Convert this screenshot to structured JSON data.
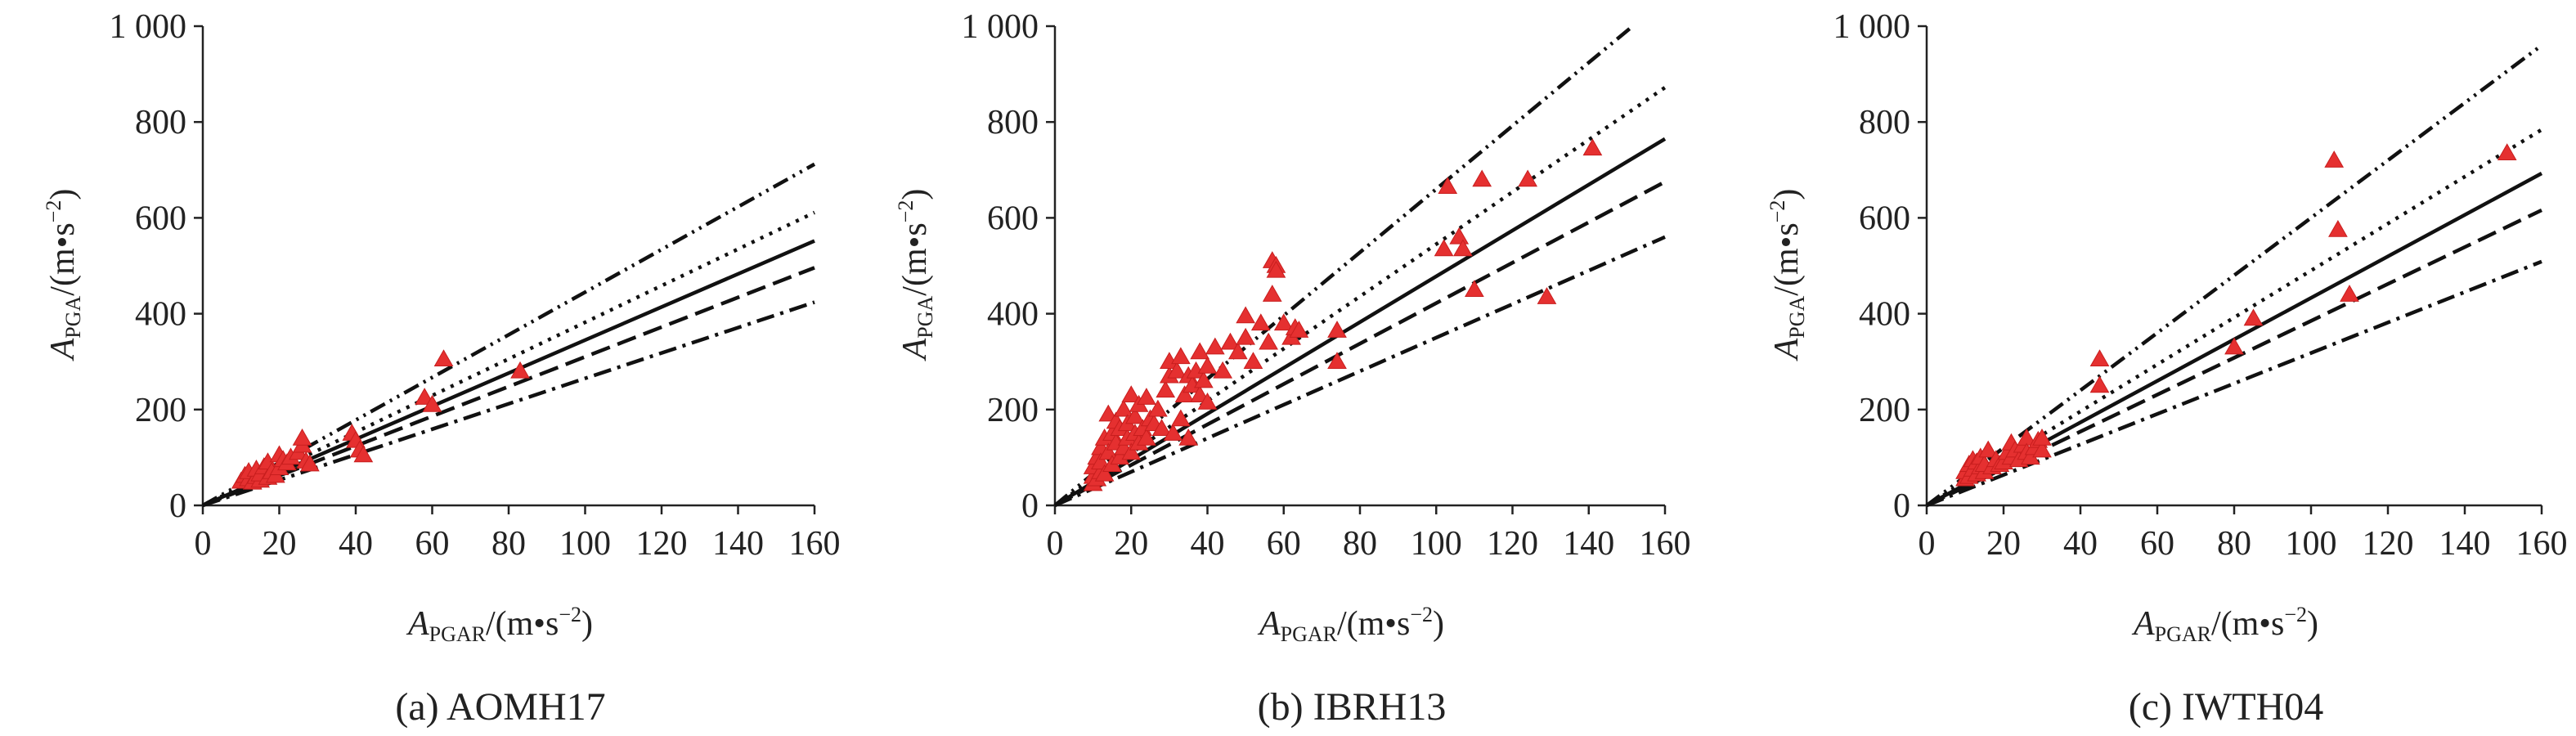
{
  "chart_data": [
    {
      "type": "scatter",
      "caption": "(a) AOMH17",
      "xlabel_main": "A",
      "xlabel_sub": "PGAR",
      "xlabel_unit": "/(m•s",
      "xlabel_exp": "−2",
      "xlabel_close": ")",
      "ylabel_main": "A",
      "ylabel_sub": "PGA",
      "ylabel_unit": "/(m•s",
      "ylabel_exp": "−2",
      "ylabel_close": ")",
      "xlim": [
        0,
        160
      ],
      "ylim": [
        0,
        1000
      ],
      "xticks": [
        0,
        20,
        40,
        60,
        80,
        100,
        120,
        140,
        160
      ],
      "yticks": [
        0,
        200,
        400,
        600,
        800,
        1000
      ],
      "ytick_labels": [
        "0",
        "200",
        "400",
        "600",
        "800",
        "1 000"
      ],
      "lines": [
        {
          "style": "dash-dot-dot",
          "slope": 4.45,
          "x_end": 160
        },
        {
          "style": "dotted",
          "slope": 3.82,
          "x_end": 160
        },
        {
          "style": "solid",
          "slope": 3.45,
          "x_end": 160
        },
        {
          "style": "dashed",
          "slope": 3.1,
          "x_end": 160
        },
        {
          "style": "dash-dot",
          "slope": 2.65,
          "x_end": 160
        }
      ],
      "points": [
        [
          10,
          50
        ],
        [
          11,
          62
        ],
        [
          12,
          55
        ],
        [
          12,
          70
        ],
        [
          13,
          48
        ],
        [
          14,
          60
        ],
        [
          14,
          75
        ],
        [
          15,
          52
        ],
        [
          15,
          65
        ],
        [
          16,
          80
        ],
        [
          17,
          58
        ],
        [
          17,
          90
        ],
        [
          18,
          70
        ],
        [
          19,
          62
        ],
        [
          20,
          78
        ],
        [
          20,
          105
        ],
        [
          21,
          95
        ],
        [
          22,
          88
        ],
        [
          23,
          100
        ],
        [
          25,
          110
        ],
        [
          26,
          125
        ],
        [
          26,
          140
        ],
        [
          27,
          92
        ],
        [
          28,
          86
        ],
        [
          39,
          150
        ],
        [
          40,
          135
        ],
        [
          41,
          115
        ],
        [
          42,
          105
        ],
        [
          58,
          225
        ],
        [
          60,
          210
        ],
        [
          63,
          305
        ],
        [
          83,
          280
        ]
      ]
    },
    {
      "type": "scatter",
      "caption": "(b) IBRH13",
      "xlabel_main": "A",
      "xlabel_sub": "PGAR",
      "xlabel_unit": "/(m•s",
      "xlabel_exp": "−2",
      "xlabel_close": ")",
      "ylabel_main": "A",
      "ylabel_sub": "PGA",
      "ylabel_unit": "/(m•s",
      "ylabel_exp": "−2",
      "ylabel_close": ")",
      "xlim": [
        0,
        160
      ],
      "ylim": [
        0,
        1000
      ],
      "xticks": [
        0,
        20,
        40,
        60,
        80,
        100,
        120,
        140,
        160
      ],
      "yticks": [
        0,
        200,
        400,
        600,
        800,
        1000
      ],
      "ytick_labels": [
        "0",
        "200",
        "400",
        "600",
        "800",
        "1 000"
      ],
      "lines": [
        {
          "style": "dash-dot-dot",
          "slope": 6.6,
          "x_end": 152
        },
        {
          "style": "dotted",
          "slope": 5.45,
          "x_end": 160
        },
        {
          "style": "solid",
          "slope": 4.78,
          "x_end": 160
        },
        {
          "style": "dashed",
          "slope": 4.22,
          "x_end": 160
        },
        {
          "style": "dash-dot",
          "slope": 3.5,
          "x_end": 160
        }
      ],
      "points": [
        [
          10,
          45
        ],
        [
          10,
          60
        ],
        [
          10,
          80
        ],
        [
          11,
          100
        ],
        [
          11,
          55
        ],
        [
          12,
          70
        ],
        [
          12,
          120
        ],
        [
          12,
          90
        ],
        [
          13,
          140
        ],
        [
          13,
          65
        ],
        [
          14,
          110
        ],
        [
          14,
          190
        ],
        [
          15,
          85
        ],
        [
          15,
          150
        ],
        [
          16,
          130
        ],
        [
          16,
          175
        ],
        [
          17,
          100
        ],
        [
          17,
          160
        ],
        [
          18,
          120
        ],
        [
          18,
          200
        ],
        [
          19,
          140
        ],
        [
          19,
          170
        ],
        [
          20,
          110
        ],
        [
          20,
          230
        ],
        [
          21,
          150
        ],
        [
          21,
          185
        ],
        [
          22,
          130
        ],
        [
          22,
          210
        ],
        [
          23,
          160
        ],
        [
          24,
          225
        ],
        [
          24,
          140
        ],
        [
          25,
          180
        ],
        [
          26,
          170
        ],
        [
          27,
          200
        ],
        [
          28,
          160
        ],
        [
          29,
          240
        ],
        [
          30,
          270
        ],
        [
          30,
          300
        ],
        [
          31,
          150
        ],
        [
          32,
          280
        ],
        [
          33,
          310
        ],
        [
          33,
          180
        ],
        [
          34,
          230
        ],
        [
          35,
          140
        ],
        [
          35,
          270
        ],
        [
          36,
          250
        ],
        [
          37,
          280
        ],
        [
          38,
          320
        ],
        [
          38,
          230
        ],
        [
          39,
          260
        ],
        [
          40,
          290
        ],
        [
          40,
          215
        ],
        [
          42,
          330
        ],
        [
          44,
          280
        ],
        [
          46,
          340
        ],
        [
          48,
          320
        ],
        [
          50,
          350
        ],
        [
          50,
          395
        ],
        [
          52,
          300
        ],
        [
          54,
          380
        ],
        [
          56,
          340
        ],
        [
          57,
          440
        ],
        [
          57,
          510
        ],
        [
          58,
          500
        ],
        [
          58,
          490
        ],
        [
          60,
          380
        ],
        [
          62,
          350
        ],
        [
          63,
          370
        ],
        [
          64,
          365
        ],
        [
          74,
          365
        ],
        [
          74,
          300
        ],
        [
          102,
          535
        ],
        [
          103,
          665
        ],
        [
          106,
          560
        ],
        [
          107,
          535
        ],
        [
          110,
          450
        ],
        [
          112,
          680
        ],
        [
          124,
          680
        ],
        [
          129,
          435
        ],
        [
          141,
          745
        ]
      ]
    },
    {
      "type": "scatter",
      "caption": "(c) IWTH04",
      "xlabel_main": "A",
      "xlabel_sub": "PGAR",
      "xlabel_unit": "/(m•s",
      "xlabel_exp": "−2",
      "xlabel_close": ")",
      "ylabel_main": "A",
      "ylabel_sub": "PGA",
      "ylabel_unit": "/(m•s",
      "ylabel_exp": "−2",
      "ylabel_close": ")",
      "xlim": [
        0,
        160
      ],
      "ylim": [
        0,
        1000
      ],
      "xticks": [
        0,
        20,
        40,
        60,
        80,
        100,
        120,
        140,
        160
      ],
      "yticks": [
        0,
        200,
        400,
        600,
        800,
        1000
      ],
      "ytick_labels": [
        "0",
        "200",
        "400",
        "600",
        "800",
        "1 000"
      ],
      "lines": [
        {
          "style": "dash-dot-dot",
          "slope": 6.0,
          "x_end": 160
        },
        {
          "style": "dotted",
          "slope": 4.9,
          "x_end": 160
        },
        {
          "style": "solid",
          "slope": 4.33,
          "x_end": 160
        },
        {
          "style": "dashed",
          "slope": 3.85,
          "x_end": 160
        },
        {
          "style": "dash-dot",
          "slope": 3.18,
          "x_end": 160
        }
      ],
      "points": [
        [
          10,
          55
        ],
        [
          10,
          70
        ],
        [
          11,
          85
        ],
        [
          11,
          60
        ],
        [
          12,
          75
        ],
        [
          12,
          95
        ],
        [
          13,
          65
        ],
        [
          13,
          90
        ],
        [
          14,
          80
        ],
        [
          14,
          100
        ],
        [
          15,
          70
        ],
        [
          15,
          85
        ],
        [
          16,
          115
        ],
        [
          17,
          80
        ],
        [
          18,
          95
        ],
        [
          19,
          85
        ],
        [
          20,
          90
        ],
        [
          21,
          110
        ],
        [
          22,
          100
        ],
        [
          22,
          130
        ],
        [
          23,
          115
        ],
        [
          24,
          95
        ],
        [
          25,
          125
        ],
        [
          26,
          140
        ],
        [
          26,
          110
        ],
        [
          27,
          100
        ],
        [
          28,
          120
        ],
        [
          29,
          135
        ],
        [
          30,
          115
        ],
        [
          30,
          140
        ],
        [
          45,
          305
        ],
        [
          45,
          250
        ],
        [
          80,
          330
        ],
        [
          85,
          390
        ],
        [
          106,
          720
        ],
        [
          107,
          575
        ],
        [
          110,
          440
        ],
        [
          151,
          735
        ]
      ]
    }
  ]
}
